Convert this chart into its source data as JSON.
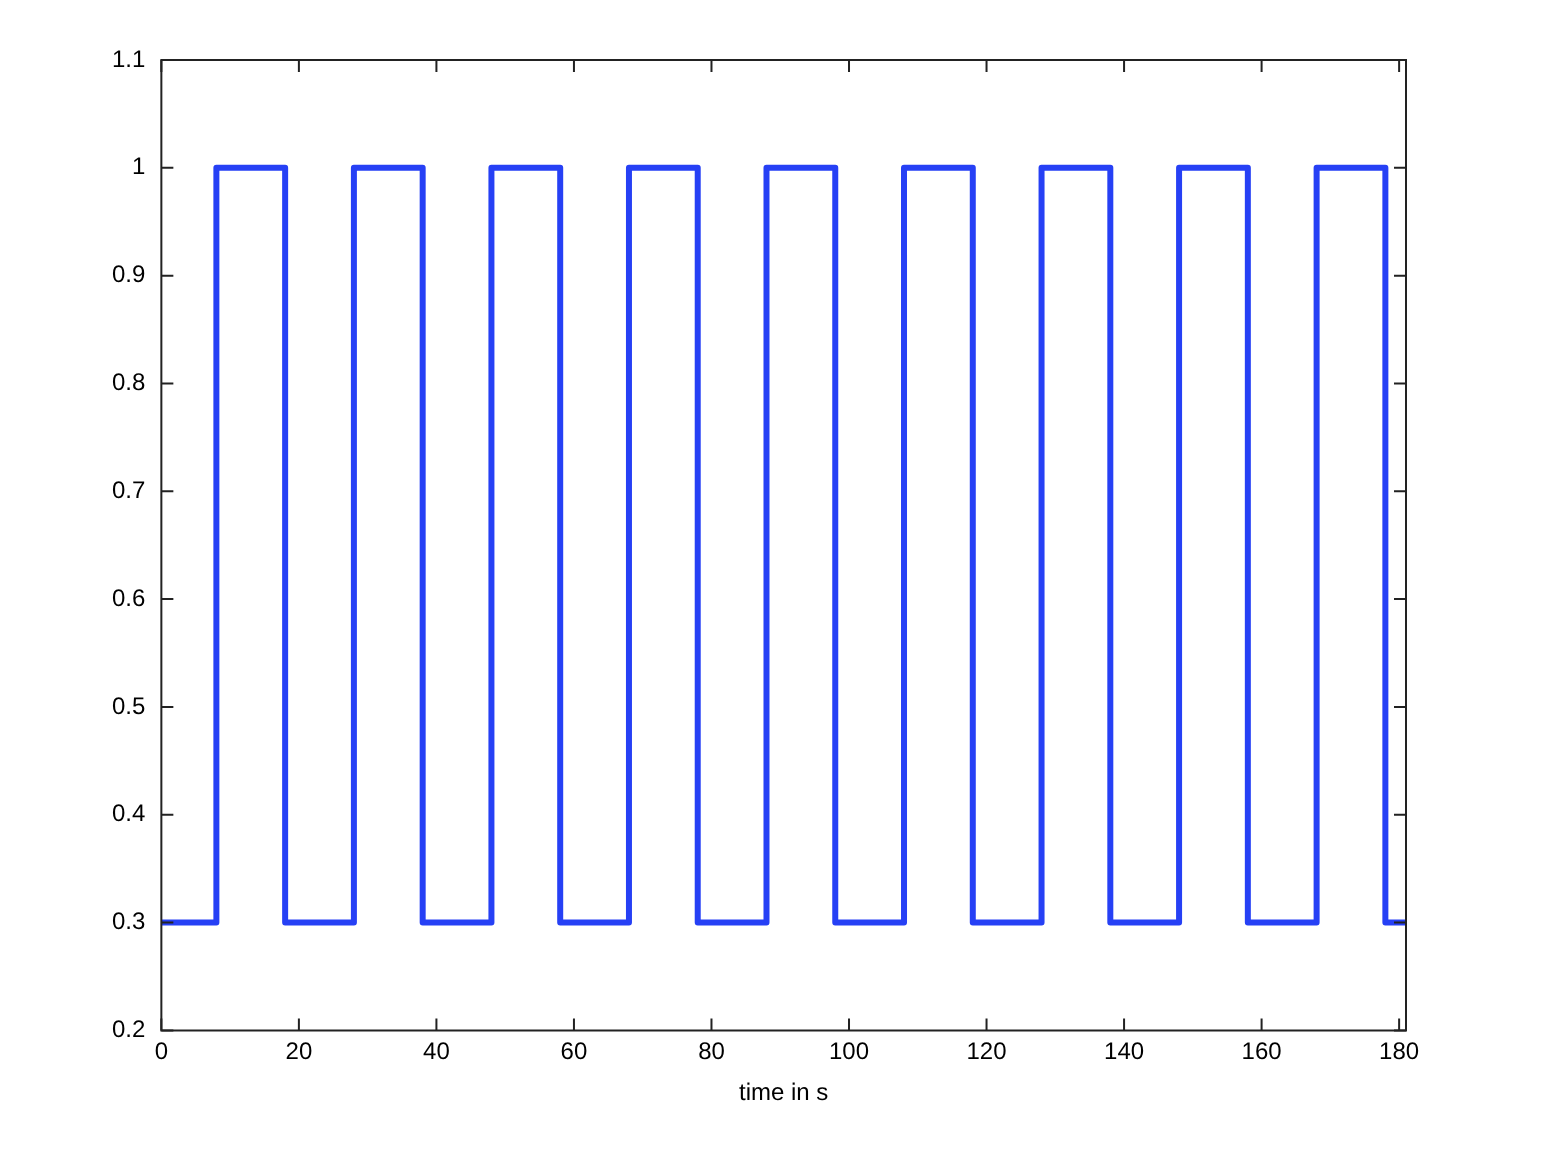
{
  "chart_data": {
    "type": "step",
    "xlabel": "time in s",
    "x": [
      0,
      8,
      18,
      28,
      38,
      48,
      58,
      68,
      78,
      88,
      98,
      108,
      118,
      128,
      138,
      148,
      158,
      168,
      178,
      181
    ],
    "series": [
      {
        "color": "#2640f5",
        "values": [
          0.3,
          1,
          0.3,
          1,
          0.3,
          1,
          0.3,
          1,
          0.3,
          1,
          0.3,
          1,
          0.3,
          1,
          0.3,
          1,
          0.3,
          1,
          0.3,
          0.3
        ]
      }
    ],
    "xlim": [
      0,
      181
    ],
    "xticks": [
      0,
      20,
      40,
      60,
      80,
      100,
      120,
      140,
      160,
      180
    ],
    "ylim": [
      0.2,
      1.1
    ],
    "yticks": [
      0.2,
      0.3,
      0.4,
      0.5,
      0.6,
      0.7,
      0.8,
      0.9,
      1,
      1.1
    ],
    "grid": false,
    "legend": false,
    "line_style": "solid",
    "marker": "none"
  }
}
